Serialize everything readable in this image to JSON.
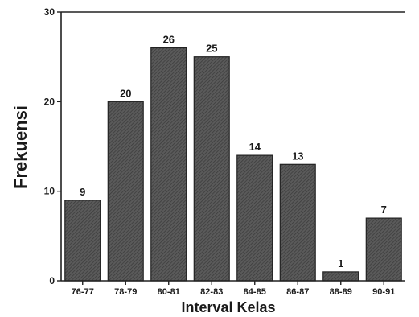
{
  "chart_data": {
    "type": "bar",
    "categories": [
      "76-77",
      "78-79",
      "80-81",
      "82-83",
      "84-85",
      "86-87",
      "88-89",
      "90-91"
    ],
    "values": [
      9,
      20,
      26,
      25,
      14,
      13,
      1,
      7
    ],
    "data_labels": [
      "9",
      "20",
      "26",
      "25",
      "14",
      "13",
      "1",
      "7"
    ],
    "xlabel": "Interval Kelas",
    "ylabel": "Frekuensi",
    "ylim": [
      0,
      30
    ],
    "yticks": [
      0,
      10,
      20,
      30
    ],
    "ytick_labels": [
      "0",
      "10",
      "20",
      "30"
    ],
    "grid": false,
    "bar_color": "#4d4d4d",
    "bar_edge_color": "#222222",
    "axis_color": "#222222"
  }
}
